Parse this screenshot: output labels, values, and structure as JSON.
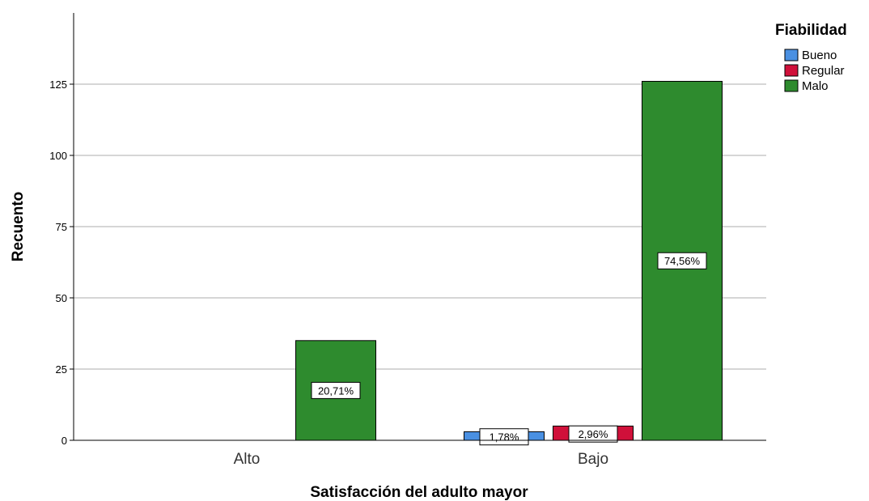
{
  "chart_data": {
    "type": "bar",
    "xlabel": "Satisfacción del adulto mayor",
    "ylabel": "Recuento",
    "categories": [
      "Alto",
      "Bajo"
    ],
    "ylim": [
      0,
      150
    ],
    "yticks": [
      0,
      25,
      50,
      75,
      100,
      125
    ],
    "grid": true,
    "legend": {
      "title": "Fiabilidad",
      "placement": "top-right"
    },
    "series": [
      {
        "name": "Bueno",
        "color": "#4a90e2",
        "values": [
          0,
          3
        ],
        "labels": [
          "",
          "1,78%"
        ]
      },
      {
        "name": "Regular",
        "color": "#d0103a",
        "values": [
          0,
          5
        ],
        "labels": [
          "",
          "2,96%"
        ]
      },
      {
        "name": "Malo",
        "color": "#2e8b2e",
        "values": [
          35,
          126
        ],
        "labels": [
          "20,71%",
          "74,56%"
        ]
      }
    ]
  }
}
